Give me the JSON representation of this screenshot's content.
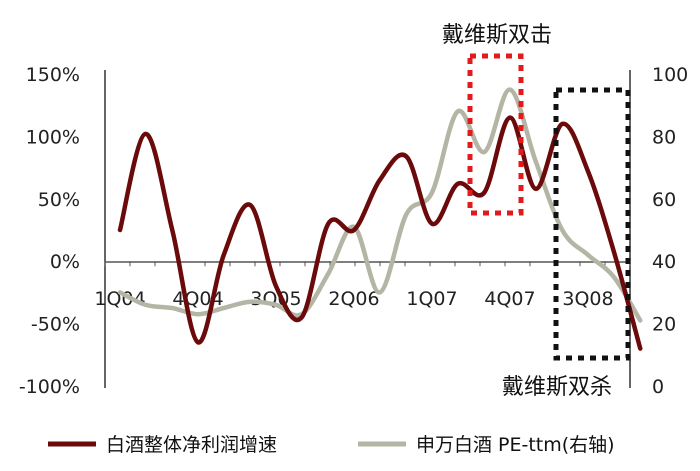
{
  "chart_data": {
    "type": "line",
    "title": "",
    "categories": [
      "1Q04",
      "4Q04",
      "3Q05",
      "2Q06",
      "1Q07",
      "4Q07",
      "3Q08"
    ],
    "y_left": {
      "ticks": [
        "150%",
        "100%",
        "50%",
        "0%",
        "-50%",
        "-100%"
      ],
      "range": [
        -100,
        150
      ],
      "unit": "%"
    },
    "y_right": {
      "ticks": [
        "100",
        "80",
        "60",
        "40",
        "20",
        "0"
      ],
      "range": [
        0,
        100
      ]
    },
    "series": [
      {
        "name": "白酒整体净利润增速",
        "axis": "left",
        "color": "#6b0a0a",
        "x": [
          0,
          0.33,
          0.67,
          1.0,
          1.33,
          1.67,
          2.0,
          2.33,
          2.67,
          3.0,
          3.33,
          3.67,
          4.0,
          4.33,
          4.67,
          5.0,
          5.33,
          5.67,
          6.0,
          6.33,
          6.67
        ],
        "values": [
          25,
          102,
          25,
          -65,
          5,
          45,
          -20,
          -45,
          30,
          25,
          65,
          84,
          30,
          62,
          55,
          115,
          58,
          110,
          72,
          8,
          -70
        ]
      },
      {
        "name": "申万白酒 PE-ttm(右轴)",
        "axis": "right",
        "color": "#b5b5a5",
        "x": [
          0,
          0.33,
          0.67,
          1.0,
          1.33,
          1.67,
          2.0,
          2.33,
          2.67,
          3.0,
          3.33,
          3.67,
          4.0,
          4.33,
          4.67,
          5.0,
          5.33,
          5.67,
          6.0,
          6.33,
          6.67
        ],
        "values": [
          30,
          26,
          25,
          23,
          25,
          27,
          26,
          23,
          36,
          51,
          30,
          55,
          62,
          88,
          75,
          95,
          72,
          50,
          42,
          35,
          21
        ]
      }
    ],
    "annotations": [
      {
        "text": "戴维斯双击",
        "box_color": "#e31a1c",
        "style": "dotted"
      },
      {
        "text": "戴维斯双杀",
        "box_color": "#000000",
        "style": "dotted"
      }
    ],
    "legend": {
      "placement": "bottom"
    },
    "grid": false
  }
}
